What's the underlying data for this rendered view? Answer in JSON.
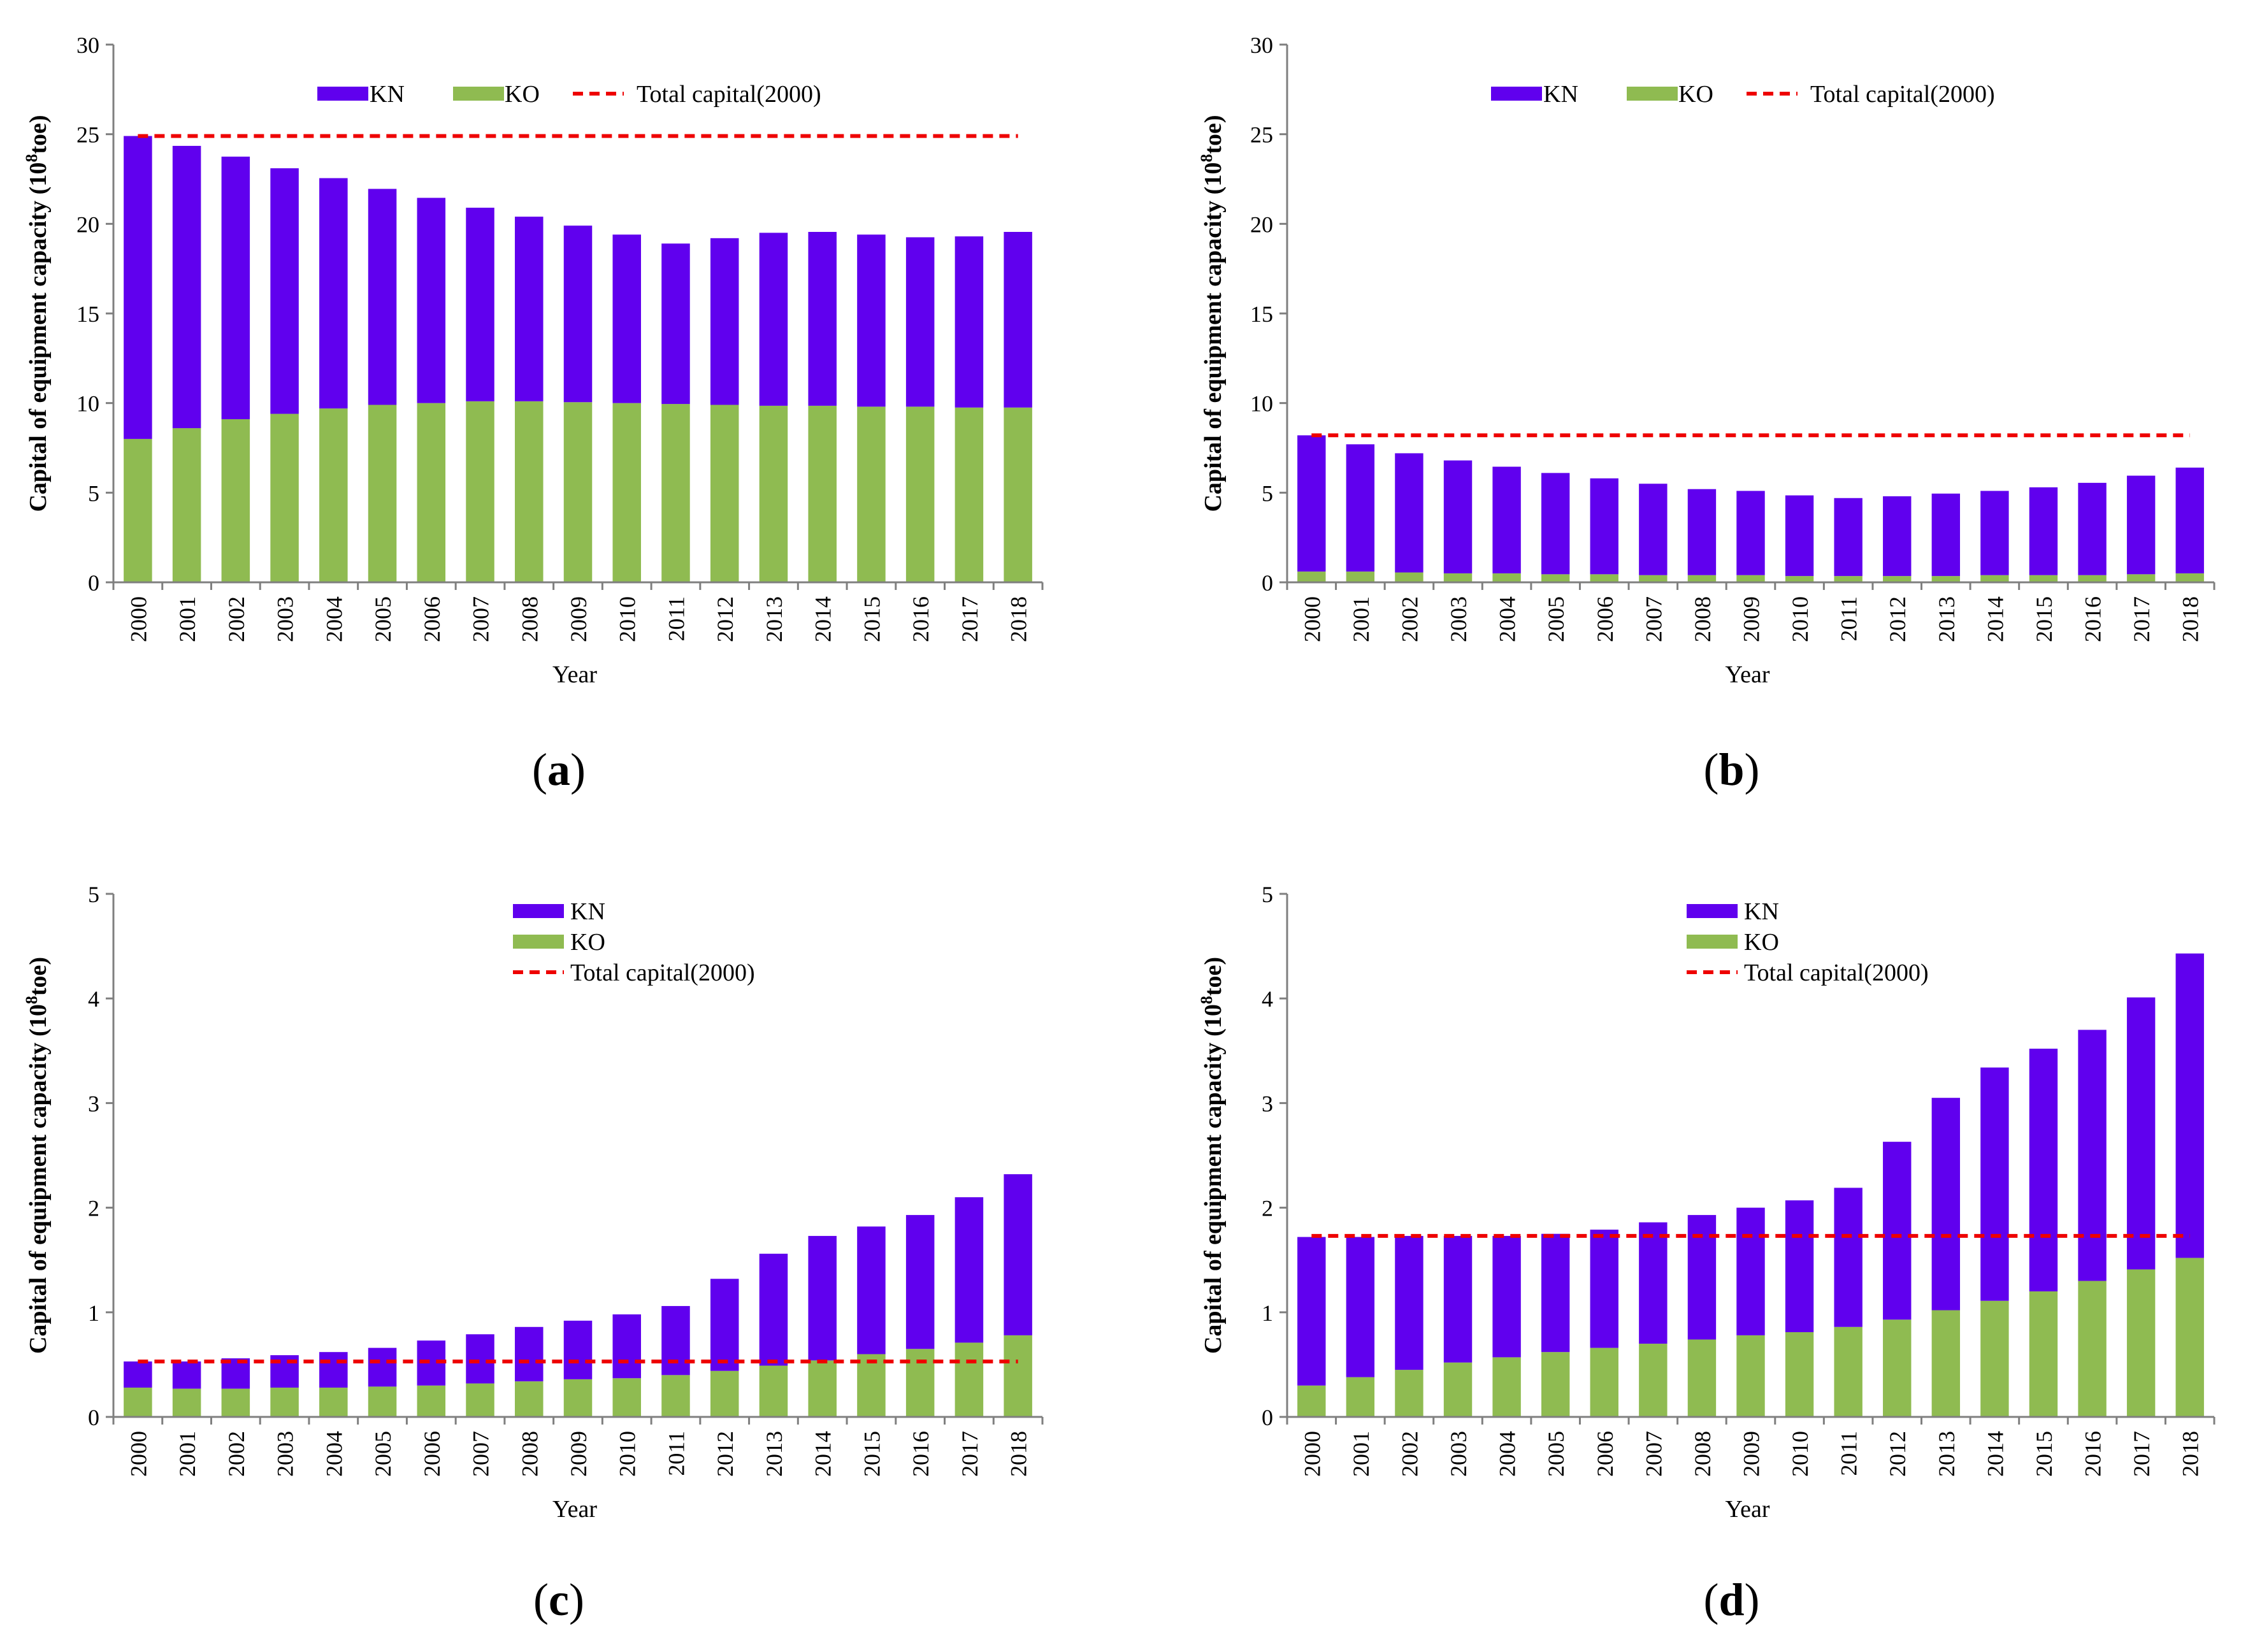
{
  "colors": {
    "KN": "#6000EE",
    "KO": "#8FBB51",
    "total": "#EE0000",
    "axis": "#7f7f7f"
  },
  "chart_data": [
    {
      "panel": "a",
      "panel_label": "(a)",
      "type": "bar",
      "stacked": true,
      "xlabel": "Year",
      "ylabel": "Capital of equipment capacity (10",
      "ylabel_sup": "8",
      "ylabel_end": "toe)",
      "ylim": [
        0,
        30
      ],
      "yticks": [
        0,
        5,
        10,
        15,
        20,
        25,
        30
      ],
      "categories": [
        "2000",
        "2001",
        "2002",
        "2003",
        "2004",
        "2005",
        "2006",
        "2007",
        "2008",
        "2009",
        "2010",
        "2011",
        "2012",
        "2013",
        "2014",
        "2015",
        "2016",
        "2017",
        "2018"
      ],
      "series": [
        {
          "name": "KO",
          "values": [
            8.0,
            8.6,
            9.1,
            9.4,
            9.7,
            9.9,
            10.0,
            10.1,
            10.1,
            10.05,
            10.0,
            9.95,
            9.9,
            9.85,
            9.85,
            9.8,
            9.8,
            9.75,
            9.75
          ]
        },
        {
          "name": "KN",
          "values": [
            16.9,
            15.75,
            14.65,
            13.7,
            12.85,
            12.05,
            11.45,
            10.8,
            10.3,
            9.85,
            9.4,
            8.95,
            9.3,
            9.65,
            9.7,
            9.6,
            9.45,
            9.55,
            9.8
          ]
        }
      ],
      "total_2000": 24.9,
      "legend": {
        "layout": "horizontal",
        "position": "top-center",
        "entries": [
          "KN",
          "KO",
          "Total capital(2000)"
        ]
      }
    },
    {
      "panel": "b",
      "panel_label": "(b)",
      "type": "bar",
      "stacked": true,
      "xlabel": "Year",
      "ylabel": "Capital of equipment capacity (10",
      "ylabel_sup": "8",
      "ylabel_end": "toe)",
      "ylim": [
        0,
        30
      ],
      "yticks": [
        0,
        5,
        10,
        15,
        20,
        25,
        30
      ],
      "categories": [
        "2000",
        "2001",
        "2002",
        "2003",
        "2004",
        "2005",
        "2006",
        "2007",
        "2008",
        "2009",
        "2010",
        "2011",
        "2012",
        "2013",
        "2014",
        "2015",
        "2016",
        "2017",
        "2018"
      ],
      "series": [
        {
          "name": "KO",
          "values": [
            0.6,
            0.6,
            0.55,
            0.5,
            0.5,
            0.45,
            0.45,
            0.4,
            0.4,
            0.4,
            0.35,
            0.35,
            0.35,
            0.35,
            0.4,
            0.4,
            0.4,
            0.45,
            0.5
          ]
        },
        {
          "name": "KN",
          "values": [
            7.6,
            7.1,
            6.65,
            6.3,
            5.95,
            5.65,
            5.35,
            5.1,
            4.8,
            4.7,
            4.5,
            4.35,
            4.45,
            4.6,
            4.7,
            4.9,
            5.15,
            5.5,
            5.9
          ]
        }
      ],
      "total_2000": 8.2,
      "legend": {
        "layout": "horizontal",
        "position": "top-center",
        "entries": [
          "KN",
          "KO",
          "Total capital(2000)"
        ]
      }
    },
    {
      "panel": "c",
      "panel_label": "(c)",
      "type": "bar",
      "stacked": true,
      "xlabel": "Year",
      "ylabel": "Capital of equipment capacity (10",
      "ylabel_sup": "8",
      "ylabel_end": "toe)",
      "ylim": [
        0,
        5
      ],
      "yticks": [
        0,
        1,
        2,
        3,
        4,
        5
      ],
      "categories": [
        "2000",
        "2001",
        "2002",
        "2003",
        "2004",
        "2005",
        "2006",
        "2007",
        "2008",
        "2009",
        "2010",
        "2011",
        "2012",
        "2013",
        "2014",
        "2015",
        "2016",
        "2017",
        "2018"
      ],
      "series": [
        {
          "name": "KO",
          "values": [
            0.28,
            0.27,
            0.27,
            0.28,
            0.28,
            0.29,
            0.3,
            0.32,
            0.34,
            0.36,
            0.37,
            0.4,
            0.44,
            0.49,
            0.54,
            0.6,
            0.65,
            0.71,
            0.78
          ]
        },
        {
          "name": "KN",
          "values": [
            0.25,
            0.26,
            0.29,
            0.31,
            0.34,
            0.37,
            0.43,
            0.47,
            0.52,
            0.56,
            0.61,
            0.66,
            0.88,
            1.07,
            1.19,
            1.22,
            1.28,
            1.39,
            1.54
          ]
        }
      ],
      "total_2000": 0.53,
      "legend": {
        "layout": "vertical",
        "position": "top-center",
        "entries": [
          "KN",
          "KO",
          "Total capital(2000)"
        ]
      }
    },
    {
      "panel": "d",
      "panel_label": "(d)",
      "type": "bar",
      "stacked": true,
      "xlabel": "Year",
      "ylabel": "Capital of equipment capacity (10",
      "ylabel_sup": "8",
      "ylabel_end": "toe)",
      "ylim": [
        0,
        5
      ],
      "yticks": [
        0,
        1,
        2,
        3,
        4,
        5
      ],
      "categories": [
        "2000",
        "2001",
        "2002",
        "2003",
        "2004",
        "2005",
        "2006",
        "2007",
        "2008",
        "2009",
        "2010",
        "2011",
        "2012",
        "2013",
        "2014",
        "2015",
        "2016",
        "2017",
        "2018"
      ],
      "series": [
        {
          "name": "KO",
          "values": [
            0.3,
            0.38,
            0.45,
            0.52,
            0.57,
            0.62,
            0.66,
            0.7,
            0.74,
            0.78,
            0.81,
            0.86,
            0.93,
            1.02,
            1.11,
            1.2,
            1.3,
            1.41,
            1.52
          ]
        },
        {
          "name": "KN",
          "values": [
            1.42,
            1.34,
            1.28,
            1.21,
            1.16,
            1.13,
            1.13,
            1.16,
            1.19,
            1.22,
            1.26,
            1.33,
            1.7,
            2.03,
            2.23,
            2.32,
            2.4,
            2.6,
            2.91
          ]
        }
      ],
      "total_2000": 1.73,
      "legend": {
        "layout": "vertical",
        "position": "top-center",
        "entries": [
          "KN",
          "KO",
          "Total capital(2000)"
        ]
      }
    }
  ]
}
